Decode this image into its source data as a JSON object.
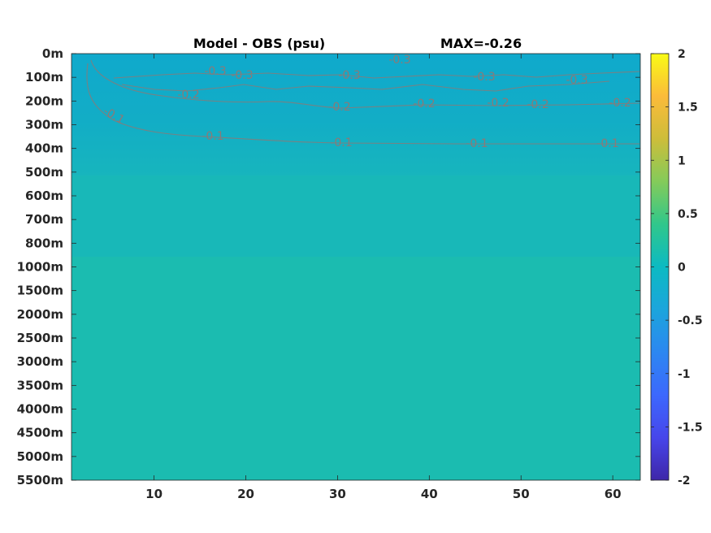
{
  "chart_data": {
    "type": "heatmap",
    "title": "Model - OBS (psu)",
    "subtitle": "MAX=-0.26",
    "x_ticks": [
      "10",
      "20",
      "30",
      "40",
      "50",
      "60"
    ],
    "x_tick_values": [
      10,
      20,
      30,
      40,
      50,
      60
    ],
    "xlim": [
      1,
      63
    ],
    "y_tick_labels": [
      "0m",
      "100m",
      "200m",
      "300m",
      "400m",
      "500m",
      "600m",
      "700m",
      "800m",
      "1000m",
      "1500m",
      "2000m",
      "2500m",
      "3000m",
      "3500m",
      "4000m",
      "4500m",
      "5000m",
      "5500m"
    ],
    "colorbar": {
      "ticks": [
        "2",
        "1.5",
        "1",
        "0.5",
        "0",
        "-0.5",
        "-1",
        "-1.5",
        "-2"
      ],
      "tick_values": [
        2,
        1.5,
        1,
        0.5,
        0,
        -0.5,
        -1,
        -1.5,
        -2
      ],
      "range": [
        -2,
        2
      ],
      "colormap": "parula"
    },
    "contours": [
      {
        "level": -0.1,
        "labels": [
          "-0.1",
          "-0.1",
          "-0.1",
          "-0.1",
          "-0.1"
        ]
      },
      {
        "level": -0.2,
        "labels": [
          "-0.2",
          "-0.2",
          "-0.2",
          "-0.2",
          "-0.2",
          "-0.2"
        ]
      },
      {
        "level": -0.3,
        "labels": [
          "-0.3",
          "-0.3",
          "-0.3",
          "-0.3",
          "-0.3",
          "-0.3"
        ]
      }
    ],
    "colors": {
      "deep_fill": "#1bbcb0",
      "surface_fill": "#12acc8",
      "mid_fill": "#17b4c0",
      "contour_line": "#8a7a78"
    }
  }
}
